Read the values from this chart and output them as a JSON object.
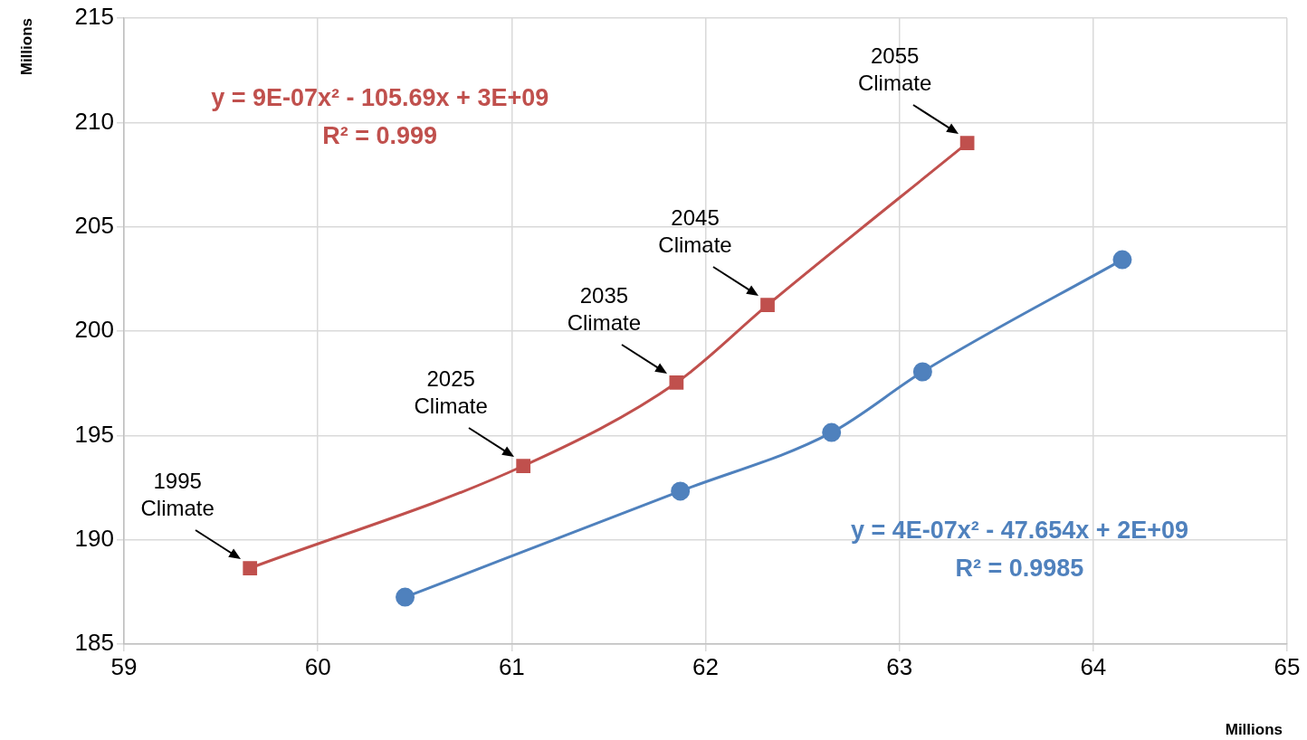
{
  "chart_data": {
    "type": "line",
    "xlabel": "Millions",
    "ylabel": "Millions",
    "xlim": [
      59,
      65
    ],
    "xticks": [
      59,
      60,
      61,
      62,
      63,
      64,
      65
    ],
    "ylim": [
      185,
      215
    ],
    "yticks": [
      185,
      190,
      195,
      200,
      205,
      210,
      215
    ],
    "grid": true,
    "legend": false,
    "line_style": "solid",
    "series": [
      {
        "name": "y = 9E-07x² - 105.69x + 3E+09\nR² = 0.999",
        "color": "#c0504d",
        "marker": "square",
        "x": [
          59.65,
          61.06,
          61.85,
          62.32,
          63.35
        ],
        "values": [
          188.64,
          193.54,
          197.53,
          201.25,
          209.01
        ]
      },
      {
        "name": "y = 4E-07x² - 47.654x + 2E+09\nR² = 0.9985",
        "color": "#4f81bd",
        "marker": "circle",
        "x": [
          60.45,
          61.87,
          62.65,
          63.12,
          64.15
        ],
        "values": [
          187.25,
          192.33,
          195.14,
          198.05,
          203.42
        ]
      }
    ],
    "annotations": [
      {
        "text": "1995\nClimate",
        "x": 59.65,
        "y": 188.64
      },
      {
        "text": "2025\nClimate",
        "x": 61.06,
        "y": 193.54
      },
      {
        "text": "2035\nClimate",
        "x": 61.85,
        "y": 197.53
      },
      {
        "text": "2045\nClimate",
        "x": 62.32,
        "y": 201.25
      },
      {
        "text": "2055\nClimate",
        "x": 63.35,
        "y": 209.01
      }
    ]
  }
}
